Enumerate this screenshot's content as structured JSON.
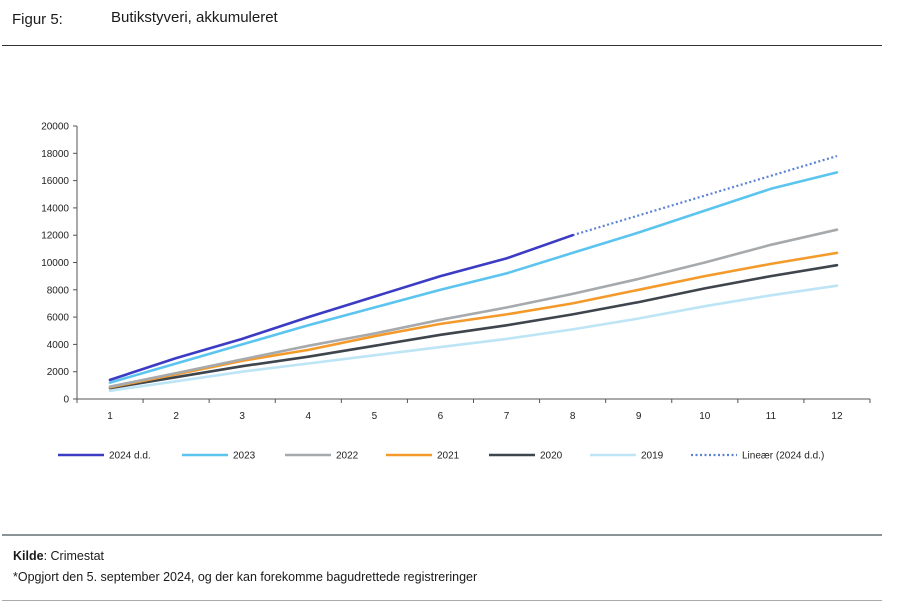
{
  "header": {
    "figure_label": "Figur 5:",
    "title": "Butikstyveri, akkumuleret"
  },
  "footer": {
    "source_label": "Kilde",
    "source_text": ": Crimestat",
    "footnote": "*Opgjort den 5. september 2024, og der kan forekomme bagudrettede registreringer"
  },
  "chart_data": {
    "type": "line",
    "title": "Butikstyveri, akkumuleret",
    "xlabel": "",
    "ylabel": "",
    "x": [
      1,
      2,
      3,
      4,
      5,
      6,
      7,
      8,
      9,
      10,
      11,
      12
    ],
    "ylim": [
      0,
      20000
    ],
    "yticks": [
      0,
      2000,
      4000,
      6000,
      8000,
      10000,
      12000,
      14000,
      16000,
      18000,
      20000
    ],
    "ytick_labels": [
      "0",
      "2000",
      "4000",
      "6000",
      "8000",
      "10000",
      "12000",
      "14000",
      "16000",
      "18000",
      "20000"
    ],
    "xtick_labels": [
      "1",
      "2",
      "3",
      "4",
      "5",
      "6",
      "7",
      "8",
      "9",
      "10",
      "11",
      "12"
    ],
    "grid": false,
    "legend_position": "bottom",
    "series": [
      {
        "name": "2024 d.d.",
        "color": "#3b3bc4",
        "style": "solid",
        "values": [
          1400,
          3000,
          4400,
          6000,
          7500,
          9000,
          10300,
          12000,
          null,
          null,
          null,
          null
        ]
      },
      {
        "name": "2023",
        "color": "#5bc4ef",
        "style": "solid",
        "values": [
          1200,
          2600,
          4000,
          5400,
          6700,
          8000,
          9200,
          10700,
          12200,
          13800,
          15400,
          16600
        ]
      },
      {
        "name": "2022",
        "color": "#a6aaad",
        "style": "solid",
        "values": [
          900,
          1900,
          2900,
          3900,
          4800,
          5800,
          6700,
          7700,
          8800,
          10000,
          11300,
          12400
        ]
      },
      {
        "name": "2021",
        "color": "#f39a2b",
        "style": "solid",
        "values": [
          850,
          1800,
          2800,
          3600,
          4600,
          5500,
          6200,
          7000,
          8000,
          9000,
          9900,
          10700
        ]
      },
      {
        "name": "2020",
        "color": "#3e454d",
        "style": "solid",
        "values": [
          800,
          1600,
          2400,
          3100,
          3900,
          4700,
          5400,
          6200,
          7100,
          8100,
          9000,
          9800
        ]
      },
      {
        "name": "2019",
        "color": "#bde5f5",
        "style": "solid",
        "values": [
          600,
          1300,
          2000,
          2600,
          3200,
          3800,
          4400,
          5100,
          5900,
          6800,
          7600,
          8300
        ]
      },
      {
        "name": "Lineær (2024 d.d.)",
        "color": "#5b82d6",
        "style": "dotted",
        "values": [
          null,
          null,
          null,
          null,
          null,
          null,
          null,
          12000,
          13450,
          14900,
          16350,
          17800
        ]
      }
    ]
  }
}
